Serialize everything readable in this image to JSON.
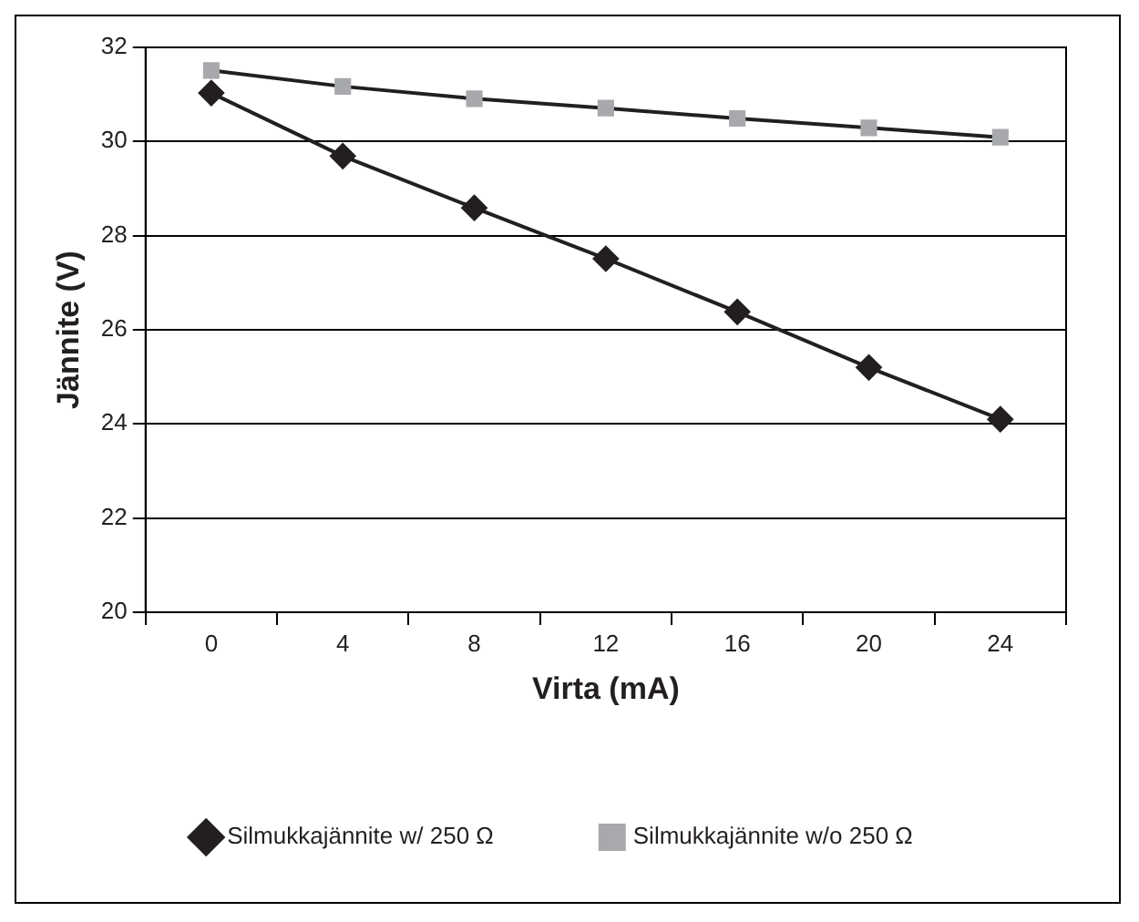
{
  "chart_data": {
    "type": "line",
    "xlabel": "Virta (mA)",
    "ylabel": "Jännite (V)",
    "categories": [
      "0",
      "4",
      "8",
      "12",
      "16",
      "20",
      "24"
    ],
    "series": [
      {
        "name": "Silmukkajännite w/ 250 Ω",
        "color": "#231f20",
        "marker": "diamond",
        "values": [
          31.03,
          29.69,
          28.59,
          27.51,
          26.38,
          25.2,
          24.1
        ]
      },
      {
        "name": "Silmukkajännite w/o 250 Ω",
        "color": "#a7a9ac",
        "marker": "square",
        "values": [
          31.51,
          31.17,
          30.91,
          30.71,
          30.49,
          30.29,
          30.09
        ]
      }
    ],
    "ylim": [
      20,
      32
    ],
    "yticks": [
      20,
      22,
      24,
      26,
      28,
      30,
      32
    ],
    "grid": "y",
    "legend": "bottom"
  }
}
